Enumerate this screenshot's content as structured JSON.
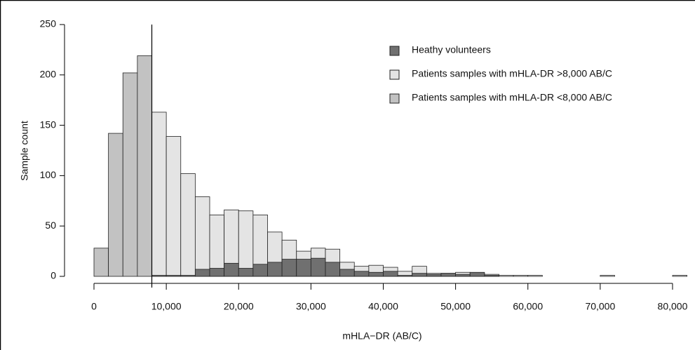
{
  "chart_data": {
    "type": "histogram",
    "x_label": "mHLA−DR (AB/C)",
    "y_label": "Sample count",
    "bins": [
      0,
      2000,
      4000,
      6000,
      8000,
      10000,
      12000,
      14000,
      16000,
      18000,
      20000,
      22000,
      24000,
      26000,
      28000,
      30000,
      32000,
      34000,
      36000,
      38000,
      40000,
      42000,
      44000,
      46000,
      48000,
      50000,
      52000,
      54000,
      56000,
      58000,
      60000,
      62000,
      64000,
      66000,
      68000,
      70000,
      72000,
      74000,
      76000,
      78000,
      80000,
      82000
    ],
    "series": [
      {
        "name": "Patients samples with mHLA-DR <8,000 AB/C",
        "color": "#c2c2c2",
        "values": [
          28,
          142,
          202,
          219,
          0,
          0,
          0,
          0,
          0,
          0,
          0,
          0,
          0,
          0,
          0,
          0,
          0,
          0,
          0,
          0,
          0,
          0,
          0,
          0,
          0,
          0,
          0,
          0,
          0,
          0,
          0,
          0,
          0,
          0,
          0,
          0,
          0,
          0,
          0,
          0,
          0
        ]
      },
      {
        "name": "Patients samples with mHLA-DR >8,000 AB/C",
        "color": "#e4e4e4",
        "values": [
          0,
          0,
          0,
          0,
          163,
          139,
          102,
          79,
          61,
          66,
          65,
          61,
          44,
          36,
          25,
          28,
          27,
          14,
          10,
          11,
          9,
          5,
          10,
          3,
          3,
          4,
          3,
          2,
          1,
          1,
          1,
          0,
          0,
          0,
          0,
          1,
          0,
          0,
          0,
          0,
          1
        ]
      },
      {
        "name": "Heathy volunteers",
        "color": "#707070",
        "values": [
          0,
          0,
          0,
          0,
          1,
          1,
          1,
          7,
          8,
          13,
          8,
          12,
          14,
          17,
          17,
          18,
          14,
          7,
          5,
          4,
          5,
          1,
          3,
          2,
          3,
          2,
          4,
          1,
          0,
          0,
          0,
          0,
          0,
          0,
          0,
          0,
          0,
          0,
          0,
          0,
          0
        ]
      }
    ],
    "legend_order": [
      2,
      1,
      0
    ],
    "threshold": 8000,
    "xlim": [
      0,
      82000
    ],
    "xticks": [
      0,
      {
        "value": 10000,
        "label": "10,000"
      },
      {
        "value": 20000,
        "label": "20,000"
      },
      {
        "value": 30000,
        "label": "30,000"
      },
      {
        "value": 40000,
        "label": "40,000"
      },
      {
        "value": 50000,
        "label": "50,000"
      },
      {
        "value": 60000,
        "label": "60,000"
      },
      {
        "value": 70000,
        "label": "70,000"
      },
      {
        "value": 80000,
        "label": "80,000"
      }
    ],
    "ylim": [
      0,
      250
    ],
    "yticks": [
      0,
      50,
      100,
      150,
      200,
      250
    ],
    "legend_position": "upper right"
  }
}
